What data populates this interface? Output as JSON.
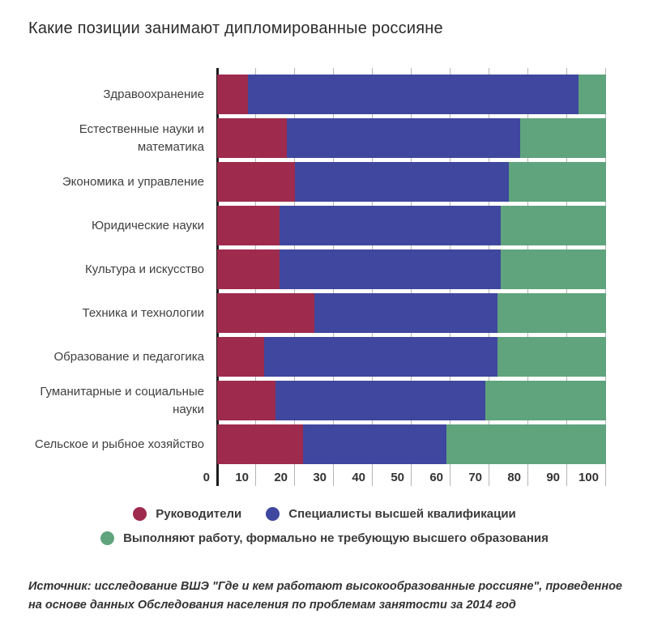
{
  "chart_data": {
    "type": "bar",
    "stacked": true,
    "orientation": "horizontal",
    "title": "Какие позиции занимают дипломированные россияне",
    "categories": [
      "Здравоохранение",
      "Естественные науки и математика",
      "Экономика и управление",
      "Юридические науки",
      "Культура и искусство",
      "Техника и технологии",
      "Образование и педагогика",
      "Гуманитарные и социальные науки",
      "Сельское и рыбное хозяйство"
    ],
    "series": [
      {
        "name": "Руководители",
        "color": "#9e2b4d",
        "values": [
          8,
          18,
          20,
          16,
          16,
          25,
          12,
          15,
          22
        ]
      },
      {
        "name": "Специалисты высшей квалификации",
        "color": "#3f479e",
        "values": [
          85,
          60,
          55,
          57,
          57,
          47,
          60,
          54,
          37
        ]
      },
      {
        "name": "Выполняют работу, формально не требующую высшего образования",
        "color": "#5fa47d",
        "values": [
          7,
          22,
          25,
          27,
          27,
          28,
          28,
          31,
          41
        ]
      }
    ],
    "xlim": [
      0,
      100
    ],
    "x_ticks": [
      0,
      10,
      20,
      30,
      40,
      50,
      60,
      70,
      80,
      90,
      100
    ],
    "grid": "vertical gridlines visible in gaps between bars",
    "legend_position": "bottom-center"
  },
  "legend": {
    "items": [
      {
        "label": "Руководители",
        "color": "#9e2b4d"
      },
      {
        "label": "Специалисты высшей квалификации",
        "color": "#3f479e"
      },
      {
        "label": "Выполняют работу, формально не требующую высшего образования",
        "color": "#5fa47d"
      }
    ]
  },
  "source": {
    "line1": "Источник:  исследование ВШЭ \"Где и кем работают высокообразованные россияне\", проведенное",
    "line2": "на основе данных Обследования населения по проблемам занятости за 2014 год"
  }
}
